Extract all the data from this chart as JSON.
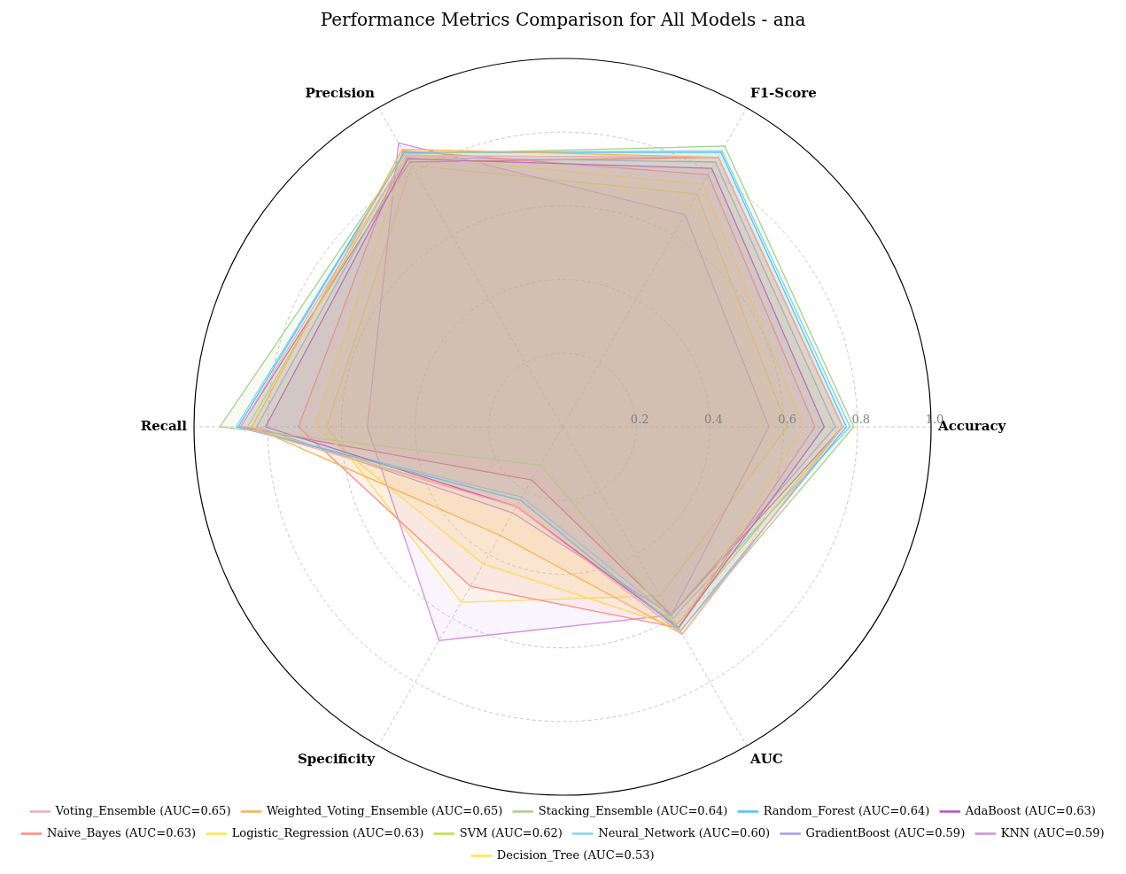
{
  "chart_data": {
    "type": "radar",
    "title": "Performance Metrics Comparison for All Models - ana",
    "categories": [
      "F1-Score",
      "Accuracy",
      "AUC",
      "Specificity",
      "Recall",
      "Precision"
    ],
    "ylim": [
      0,
      1
    ],
    "yticks": [
      0.2,
      0.4,
      0.6,
      0.8,
      {
        "value": 1,
        "label": "1.0"
      }
    ],
    "grid": true,
    "legend": "bottom",
    "marker": "none",
    "series": [
      {
        "name": "Voting_Ensemble (AUC=0.65)",
        "color": "#f4a6c0",
        "values": [
          0.845,
          0.76,
          0.65,
          0.25,
          0.874,
          0.85
        ]
      },
      {
        "name": "Weighted_Voting_Ensemble (AUC=0.65)",
        "color": "#f9b24f",
        "values": [
          0.845,
          0.76,
          0.65,
          0.34,
          0.843,
          0.87
        ]
      },
      {
        "name": "Stacking_Ensemble (AUC=0.64)",
        "color": "#a8d08d",
        "values": [
          0.88,
          0.79,
          0.64,
          0.12,
          0.93,
          0.855
        ]
      },
      {
        "name": "Random_Forest (AUC=0.64)",
        "color": "#4fc3f7",
        "values": [
          0.86,
          0.77,
          0.64,
          0.23,
          0.88,
          0.86
        ]
      },
      {
        "name": "AdaBoost (AUC=0.63)",
        "color": "#b84fc8",
        "values": [
          0.81,
          0.71,
          0.63,
          0.25,
          0.806,
          0.84
        ]
      },
      {
        "name": "Naive_Bayes (AUC=0.63)",
        "color": "#ff8a80",
        "values": [
          0.79,
          0.685,
          0.63,
          0.5,
          0.717,
          0.865
        ]
      },
      {
        "name": "Logistic_Regression (AUC=0.63)",
        "color": "#ffe34d",
        "values": [
          0.76,
          0.655,
          0.63,
          0.43,
          0.673,
          0.85
        ]
      },
      {
        "name": "SVM (AUC=0.62)",
        "color": "#c6dc3a",
        "values": [
          0.845,
          0.76,
          0.62,
          0.25,
          0.855,
          0.85
        ]
      },
      {
        "name": "Neural_Network (AUC=0.60)",
        "color": "#80d4f8",
        "values": [
          0.865,
          0.78,
          0.6,
          0.22,
          0.886,
          0.86
        ]
      },
      {
        "name": "GradientBoost (AUC=0.59)",
        "color": "#a99be6",
        "values": [
          0.83,
          0.74,
          0.59,
          0.27,
          0.83,
          0.845
        ]
      },
      {
        "name": "KNN (AUC=0.59)",
        "color": "#cf8fe0",
        "values": [
          0.665,
          0.56,
          0.59,
          0.67,
          0.53,
          0.89
        ]
      },
      {
        "color": "#e8507a",
        "values": [
          0.845,
          0.76,
          0.59,
          0.167,
          0.874,
          0.83
        ]
      },
      {
        "name": "Decision_Tree (AUC=0.53)",
        "color": "#ffe84a",
        "values": [
          0.73,
          0.61,
          0.53,
          0.55,
          0.64,
          0.82
        ]
      }
    ]
  }
}
